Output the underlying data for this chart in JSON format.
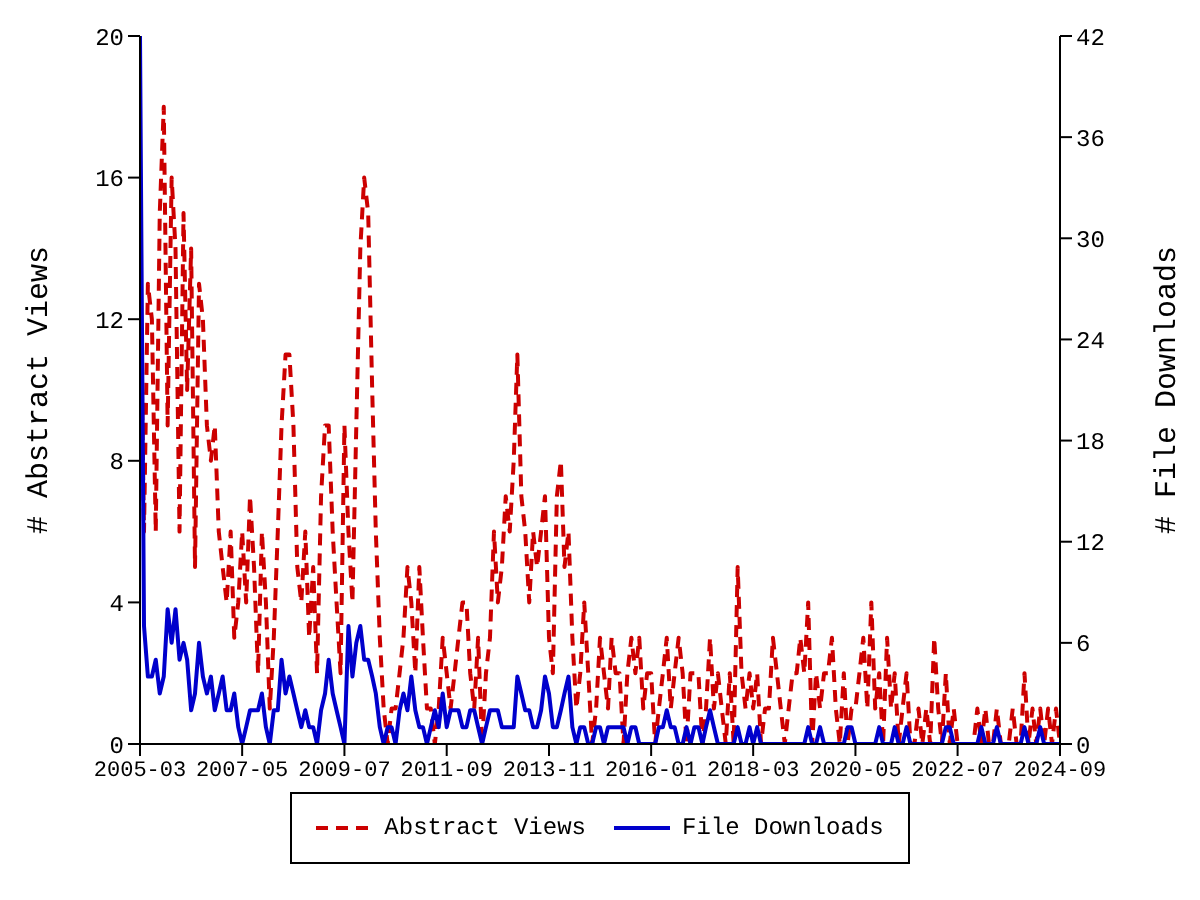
{
  "chart_data": {
    "type": "line",
    "ylabel": "# Abstract Views",
    "y2label": "# File Downloads",
    "legend": "bottom",
    "x": [
      "2005-03",
      "2005-04",
      "2005-05",
      "2005-06",
      "2005-07",
      "2005-08",
      "2005-09",
      "2005-10",
      "2005-11",
      "2005-12",
      "2006-01",
      "2006-02",
      "2006-03",
      "2006-04",
      "2006-05",
      "2006-06",
      "2006-07",
      "2006-08",
      "2006-09",
      "2006-10",
      "2006-11",
      "2006-12",
      "2007-01",
      "2007-02",
      "2007-03",
      "2007-04",
      "2007-05",
      "2007-06",
      "2007-07",
      "2007-08",
      "2007-09",
      "2007-10",
      "2007-11",
      "2007-12",
      "2008-01",
      "2008-02",
      "2008-03",
      "2008-04",
      "2008-05",
      "2008-06",
      "2008-07",
      "2008-08",
      "2008-09",
      "2008-10",
      "2008-11",
      "2008-12",
      "2009-01",
      "2009-02",
      "2009-03",
      "2009-04",
      "2009-05",
      "2009-06",
      "2009-07",
      "2009-08",
      "2009-09",
      "2009-10",
      "2009-11",
      "2009-12",
      "2010-01",
      "2010-02",
      "2010-03",
      "2010-04",
      "2010-05",
      "2010-06",
      "2010-07",
      "2010-08",
      "2010-09",
      "2010-10",
      "2010-11",
      "2010-12",
      "2011-01",
      "2011-02",
      "2011-03",
      "2011-04",
      "2011-05",
      "2011-06",
      "2011-07",
      "2011-08",
      "2011-09",
      "2011-10",
      "2011-11",
      "2011-12",
      "2012-01",
      "2012-02",
      "2012-03",
      "2012-04",
      "2012-05",
      "2012-06",
      "2012-07",
      "2012-08",
      "2012-09",
      "2012-10",
      "2012-11",
      "2012-12",
      "2013-01",
      "2013-02",
      "2013-03",
      "2013-04",
      "2013-05",
      "2013-06",
      "2013-07",
      "2013-08",
      "2013-09",
      "2013-10",
      "2013-11",
      "2013-12",
      "2014-01",
      "2014-02",
      "2014-03",
      "2014-04",
      "2014-05",
      "2014-06",
      "2014-07",
      "2014-08",
      "2014-09",
      "2014-10",
      "2014-11",
      "2014-12",
      "2015-01",
      "2015-02",
      "2015-03",
      "2015-04",
      "2015-05",
      "2015-06",
      "2015-07",
      "2015-08",
      "2015-09",
      "2015-10",
      "2015-11",
      "2015-12",
      "2016-01",
      "2016-02",
      "2016-03",
      "2016-04",
      "2016-05",
      "2016-06",
      "2016-07",
      "2016-08",
      "2016-09",
      "2016-10",
      "2016-11",
      "2016-12",
      "2017-01",
      "2017-02",
      "2017-03",
      "2017-04",
      "2017-05",
      "2017-06",
      "2017-07",
      "2017-08",
      "2017-09",
      "2017-10",
      "2017-11",
      "2017-12",
      "2018-01",
      "2018-02",
      "2018-03",
      "2018-04",
      "2018-05",
      "2018-06",
      "2018-07",
      "2018-08",
      "2018-09",
      "2018-10",
      "2018-11",
      "2018-12",
      "2019-01",
      "2019-02",
      "2019-03",
      "2019-04",
      "2019-05",
      "2019-06",
      "2019-07",
      "2019-08",
      "2019-09",
      "2019-10",
      "2019-11",
      "2019-12",
      "2020-01",
      "2020-02",
      "2020-03",
      "2020-04",
      "2020-05",
      "2020-06",
      "2020-07",
      "2020-08",
      "2020-09",
      "2020-10",
      "2020-11",
      "2020-12",
      "2021-01",
      "2021-02",
      "2021-03",
      "2021-04",
      "2021-05",
      "2021-06",
      "2021-07",
      "2021-08",
      "2021-09",
      "2021-10",
      "2021-11",
      "2021-12",
      "2022-01",
      "2022-02",
      "2022-03",
      "2022-04",
      "2022-05",
      "2022-06",
      "2022-07",
      "2022-08",
      "2022-09",
      "2022-10",
      "2022-11",
      "2022-12",
      "2023-01",
      "2023-02",
      "2023-03",
      "2023-04",
      "2023-05",
      "2023-06",
      "2023-07",
      "2023-08",
      "2023-09",
      "2023-10",
      "2023-11",
      "2023-12",
      "2024-01",
      "2024-02",
      "2024-03",
      "2024-04",
      "2024-05",
      "2024-06",
      "2024-07",
      "2024-08",
      "2024-09"
    ],
    "series": [
      {
        "name": "Abstract Views",
        "color": "#cc0000",
        "line_style": "dashed",
        "values": [
          14,
          6,
          13,
          12,
          6,
          15,
          18,
          9,
          16,
          14,
          6,
          15,
          10,
          14,
          5,
          13,
          12,
          9,
          8,
          9,
          6,
          5,
          4,
          6,
          3,
          4,
          6,
          4,
          7,
          5,
          2,
          6,
          4,
          1,
          3,
          6,
          9,
          11,
          11,
          9,
          5,
          4,
          6,
          3,
          5,
          2,
          7,
          9,
          9,
          6,
          4,
          2,
          9,
          6,
          4,
          9,
          14,
          16,
          15,
          10,
          6,
          3,
          1,
          0,
          1,
          1,
          2,
          3,
          5,
          4,
          2,
          5,
          3,
          1,
          1,
          0,
          1,
          3,
          2,
          1,
          2,
          3,
          4,
          4,
          2,
          1,
          3,
          0,
          2,
          3,
          6,
          4,
          5,
          7,
          6,
          8,
          11,
          7,
          6,
          4,
          6,
          5,
          6,
          7,
          3,
          2,
          7,
          8,
          5,
          6,
          3,
          1,
          2,
          4,
          2,
          0,
          1,
          3,
          2,
          1,
          3,
          2,
          2,
          0,
          2,
          3,
          2,
          3,
          1,
          2,
          2,
          0,
          1,
          2,
          3,
          1,
          2,
          3,
          2,
          0,
          2,
          2,
          2,
          0,
          1,
          3,
          1,
          2,
          1,
          0,
          2,
          0,
          5,
          2,
          1,
          2,
          1,
          2,
          0,
          1,
          1,
          3,
          2,
          1,
          0,
          1,
          2,
          2,
          3,
          2,
          4,
          0,
          2,
          1,
          2,
          2,
          3,
          1,
          0,
          2,
          0,
          1,
          1,
          2,
          3,
          1,
          4,
          1,
          2,
          0,
          3,
          1,
          2,
          0,
          1,
          2,
          0,
          0,
          1,
          0,
          1,
          0,
          3,
          1,
          0,
          2,
          0,
          1,
          0,
          0,
          0,
          0,
          0,
          1,
          0,
          1,
          0,
          0,
          1,
          0,
          0,
          0,
          1,
          0,
          0,
          2,
          0,
          1,
          0,
          1,
          0,
          1,
          0,
          1,
          0
        ]
      },
      {
        "name": "File Downloads",
        "color": "#0000cc",
        "line_style": "solid",
        "axis": "y2",
        "values": [
          42,
          7,
          4,
          4,
          5,
          3,
          4,
          8,
          6,
          8,
          5,
          6,
          5,
          2,
          3,
          6,
          4,
          3,
          4,
          2,
          3,
          4,
          2,
          2,
          3,
          1,
          0,
          1,
          2,
          2,
          2,
          3,
          1,
          0,
          2,
          2,
          5,
          3,
          4,
          3,
          2,
          1,
          2,
          1,
          1,
          0,
          2,
          3,
          5,
          3,
          2,
          1,
          0,
          7,
          4,
          6,
          7,
          5,
          5,
          4,
          3,
          1,
          0,
          1,
          1,
          0,
          2,
          3,
          2,
          4,
          2,
          1,
          1,
          0,
          1,
          2,
          1,
          3,
          1,
          2,
          2,
          2,
          1,
          1,
          2,
          2,
          1,
          0,
          1,
          2,
          2,
          2,
          1,
          1,
          1,
          1,
          4,
          3,
          2,
          2,
          1,
          1,
          2,
          4,
          3,
          1,
          1,
          2,
          3,
          4,
          1,
          0,
          1,
          1,
          0,
          0,
          1,
          1,
          0,
          1,
          1,
          1,
          1,
          1,
          0,
          1,
          1,
          0,
          0,
          0,
          0,
          0,
          1,
          1,
          2,
          1,
          1,
          0,
          0,
          1,
          0,
          1,
          1,
          0,
          1,
          2,
          1,
          0,
          0,
          0,
          0,
          0,
          1,
          0,
          0,
          1,
          0,
          1,
          0,
          0,
          0,
          0,
          0,
          0,
          0,
          0,
          0,
          0,
          0,
          0,
          1,
          0,
          0,
          1,
          0,
          0,
          0,
          0,
          0,
          0,
          1,
          1,
          0,
          0,
          0,
          0,
          0,
          0,
          1,
          0,
          0,
          0,
          1,
          0,
          0,
          1,
          0,
          0,
          0,
          0,
          0,
          0,
          0,
          0,
          0,
          1,
          1,
          0,
          0,
          0,
          0,
          0,
          0,
          0,
          1,
          0,
          0,
          0,
          1,
          0,
          0,
          0,
          0,
          0,
          0,
          1,
          0,
          0,
          0,
          1,
          0,
          0,
          0,
          0,
          0
        ]
      }
    ],
    "xlim": [
      "2005-03",
      "2024-09"
    ],
    "xticks": [
      "2005-03",
      "2007-05",
      "2009-07",
      "2011-09",
      "2013-11",
      "2016-01",
      "2018-03",
      "2020-05",
      "2022-07",
      "2024-09"
    ],
    "ylim": [
      0,
      20
    ],
    "yticks": [
      0,
      4,
      8,
      12,
      16,
      20
    ],
    "y2lim": [
      0,
      42
    ],
    "y2ticks": [
      0,
      6,
      12,
      18,
      24,
      30,
      36,
      42
    ],
    "grid": false
  }
}
